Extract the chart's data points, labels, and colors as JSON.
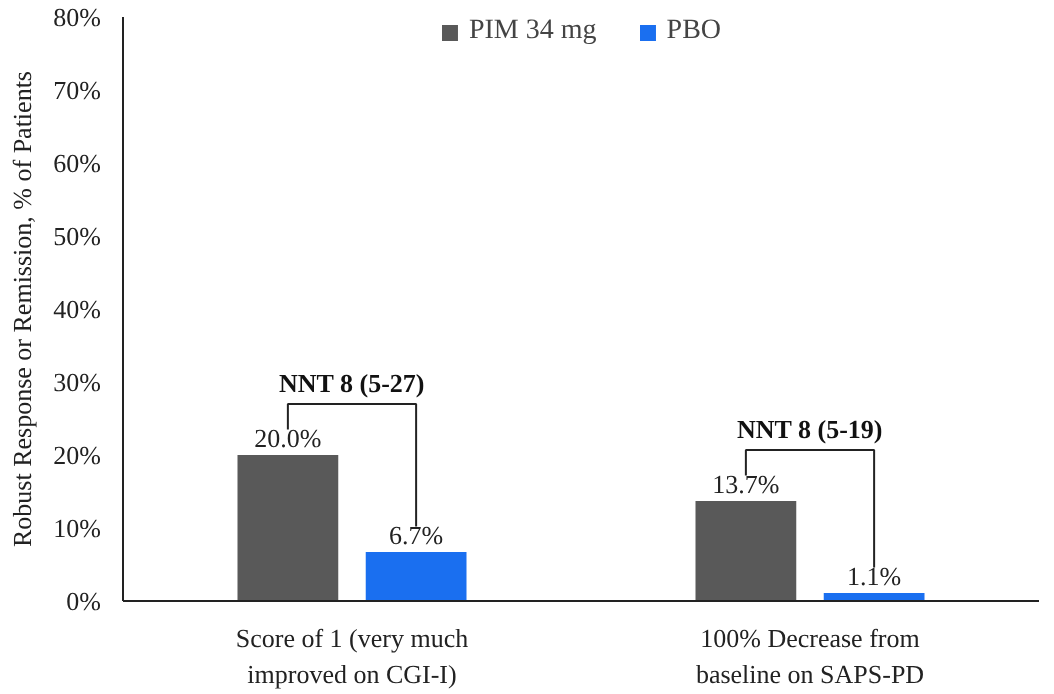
{
  "chart_data": {
    "type": "bar",
    "ylabel": "Robust Response or Remission, % of Patients",
    "categories": [
      "Score of 1 (very much\nimproved on CGI-I)",
      "100% Decrease from\nbaseline on SAPS-PD"
    ],
    "series": [
      {
        "name": "PIM 34 mg",
        "color": "#595959",
        "values": [
          20.0,
          13.7
        ],
        "value_labels": [
          "20.0%",
          "13.7%"
        ]
      },
      {
        "name": "PBO",
        "color": "#1a6ff0",
        "values": [
          6.7,
          1.1
        ],
        "value_labels": [
          "6.7%",
          "1.1%"
        ]
      }
    ],
    "ylim": [
      0,
      80
    ],
    "yticks": [
      {
        "value": 0,
        "label": "0%"
      },
      {
        "value": 10,
        "label": "10%"
      },
      {
        "value": 20,
        "label": "20%"
      },
      {
        "value": 30,
        "label": "30%"
      },
      {
        "value": 40,
        "label": "40%"
      },
      {
        "value": 50,
        "label": "50%"
      },
      {
        "value": 60,
        "label": "60%"
      },
      {
        "value": 70,
        "label": "70%"
      },
      {
        "value": 80,
        "label": "80%"
      }
    ],
    "annotations": [
      "NNT 8 (5-27)",
      "NNT 8 (5-19)"
    ],
    "grid": false,
    "legend": "top"
  }
}
